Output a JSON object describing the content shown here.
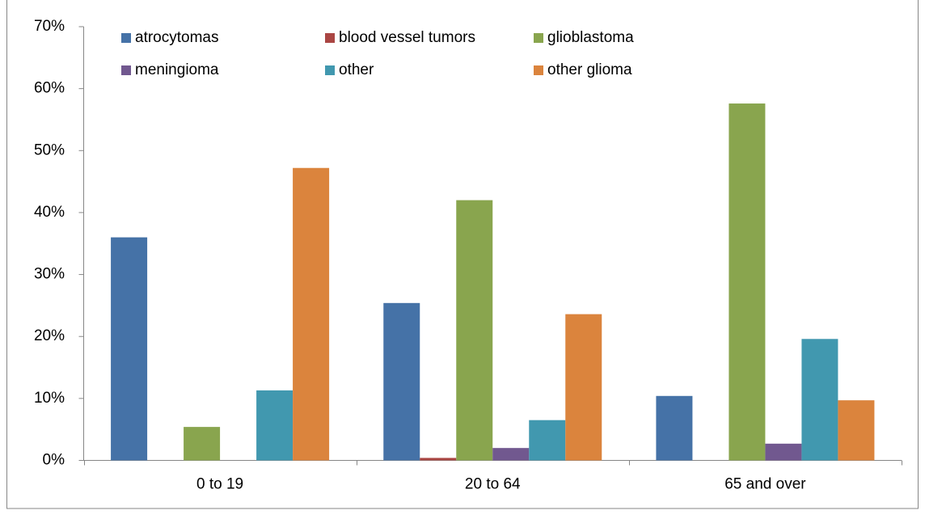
{
  "chart_data": {
    "type": "bar",
    "categories": [
      "0 to 19",
      "20 to 64",
      "65 and over"
    ],
    "series": [
      {
        "name": "atrocytomas",
        "color": "#4572a7",
        "values": [
          36,
          25.4,
          10.4
        ]
      },
      {
        "name": "blood vessel tumors",
        "color": "#aa4643",
        "values": [
          0,
          0.4,
          0
        ]
      },
      {
        "name": "glioblastoma",
        "color": "#89a54e",
        "values": [
          5.4,
          42,
          57.6
        ]
      },
      {
        "name": "meningioma",
        "color": "#71588f",
        "values": [
          0,
          2,
          2.7
        ]
      },
      {
        "name": "other",
        "color": "#4198af",
        "values": [
          11.3,
          6.5,
          19.6
        ]
      },
      {
        "name": "other glioma",
        "color": "#db843d",
        "values": [
          47.2,
          23.6,
          9.7
        ]
      }
    ],
    "ylim": [
      0,
      70
    ],
    "yticks": [
      {
        "value": 0,
        "label": "0%"
      },
      {
        "value": 10,
        "label": "10%"
      },
      {
        "value": 20,
        "label": "20%"
      },
      {
        "value": 30,
        "label": "30%"
      },
      {
        "value": 40,
        "label": "40%"
      },
      {
        "value": 50,
        "label": "50%"
      },
      {
        "value": 60,
        "label": "60%"
      },
      {
        "value": 70,
        "label": "70%"
      }
    ],
    "grid": false,
    "legend": "upper left"
  }
}
